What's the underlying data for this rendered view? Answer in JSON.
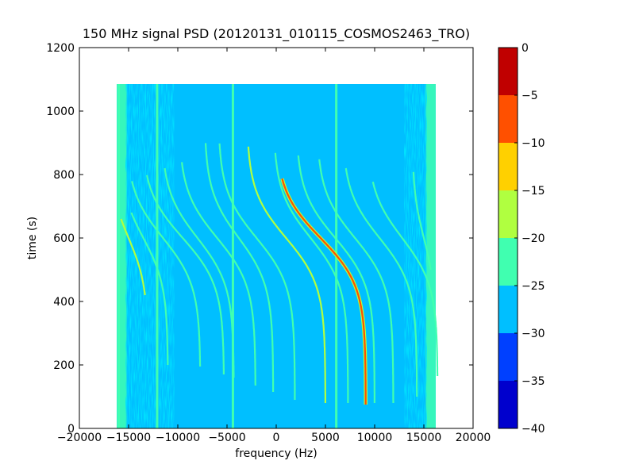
{
  "chart_data": {
    "type": "heatmap",
    "title": "150 MHz signal PSD (20120131_010115_COSMOS2463_TRO)",
    "xlabel": "frequency (Hz)",
    "ylabel": "time (s)",
    "xlim": [
      -20000,
      20000
    ],
    "ylim": [
      0,
      1200
    ],
    "xticks": [
      -20000,
      -15000,
      -10000,
      -5000,
      0,
      5000,
      10000,
      15000,
      20000
    ],
    "yticks": [
      0,
      200,
      400,
      600,
      800,
      1000,
      1200
    ],
    "data_extent": {
      "x": [
        -16200,
        16200
      ],
      "y": [
        0,
        1085
      ]
    },
    "background_level": -27.5,
    "colorbar": {
      "ticks": [
        0,
        -5,
        -10,
        -15,
        -20,
        -25,
        -30,
        -35,
        -40
      ],
      "levels": [
        -40,
        -35,
        -30,
        -25,
        -20,
        -15,
        -10,
        -5,
        0
      ],
      "colors": [
        "#0000cd",
        "#0040ff",
        "#00bfff",
        "#40ffb0",
        "#b0ff40",
        "#ffd000",
        "#ff5000",
        "#c00000"
      ]
    },
    "vertical_lines": [
      {
        "x": -16000,
        "level": -22.5
      },
      {
        "x": -12100,
        "level": -22.5
      },
      {
        "x": -4400,
        "level": -22.5
      },
      {
        "x": 6100,
        "level": -22.5
      }
    ],
    "traces": [
      {
        "x0": 4500,
        "y0": 600,
        "width": 4600,
        "y_top": 790,
        "y_bottom": 75,
        "level": -7.5
      },
      {
        "x0": -11500,
        "y0": 600,
        "width": 3800,
        "y_top": 780,
        "y_bottom": 195,
        "level": -22.5
      },
      {
        "x0": -9500,
        "y0": 600,
        "width": 4200,
        "y_top": 800,
        "y_bottom": 170,
        "level": -22.5
      },
      {
        "x0": -8000,
        "y0": 600,
        "width": 3700,
        "y_top": 820,
        "y_bottom": 160,
        "level": -22.5
      },
      {
        "x0": -6000,
        "y0": 600,
        "width": 3900,
        "y_top": 840,
        "y_bottom": 135,
        "level": -22.5
      },
      {
        "x0": -3800,
        "y0": 600,
        "width": 3500,
        "y_top": 900,
        "y_bottom": 115,
        "level": -22.5
      },
      {
        "x0": -2000,
        "y0": 600,
        "width": 3900,
        "y_top": 900,
        "y_bottom": 90,
        "level": -22.5
      },
      {
        "x0": 1000,
        "y0": 600,
        "width": 4000,
        "y_top": 890,
        "y_bottom": 80,
        "level": -17.5
      },
      {
        "x0": 3500,
        "y0": 600,
        "width": 3800,
        "y_top": 870,
        "y_bottom": 80,
        "level": -22.5
      },
      {
        "x0": 6000,
        "y0": 600,
        "width": 4000,
        "y_top": 860,
        "y_bottom": 80,
        "level": -22.5
      },
      {
        "x0": 8000,
        "y0": 600,
        "width": 3900,
        "y_top": 850,
        "y_bottom": 80,
        "level": -22.5
      },
      {
        "x0": 10500,
        "y0": 600,
        "width": 3800,
        "y_top": 820,
        "y_bottom": 100,
        "level": -22.5
      },
      {
        "x0": 12800,
        "y0": 600,
        "width": 3600,
        "y_top": 780,
        "y_bottom": 165,
        "level": -22.5
      },
      {
        "x0": -13500,
        "y0": 600,
        "width": 2500,
        "y_top": 680,
        "y_bottom": 200,
        "level": -22.5
      },
      {
        "x0": -15000,
        "y0": 600,
        "width": 2000,
        "y_top": 660,
        "y_bottom": 420,
        "level": -17.5
      },
      {
        "x0": 15000,
        "y0": 600,
        "width": 1200,
        "y_top": 810,
        "y_bottom": 500,
        "level": -22.5
      }
    ]
  }
}
